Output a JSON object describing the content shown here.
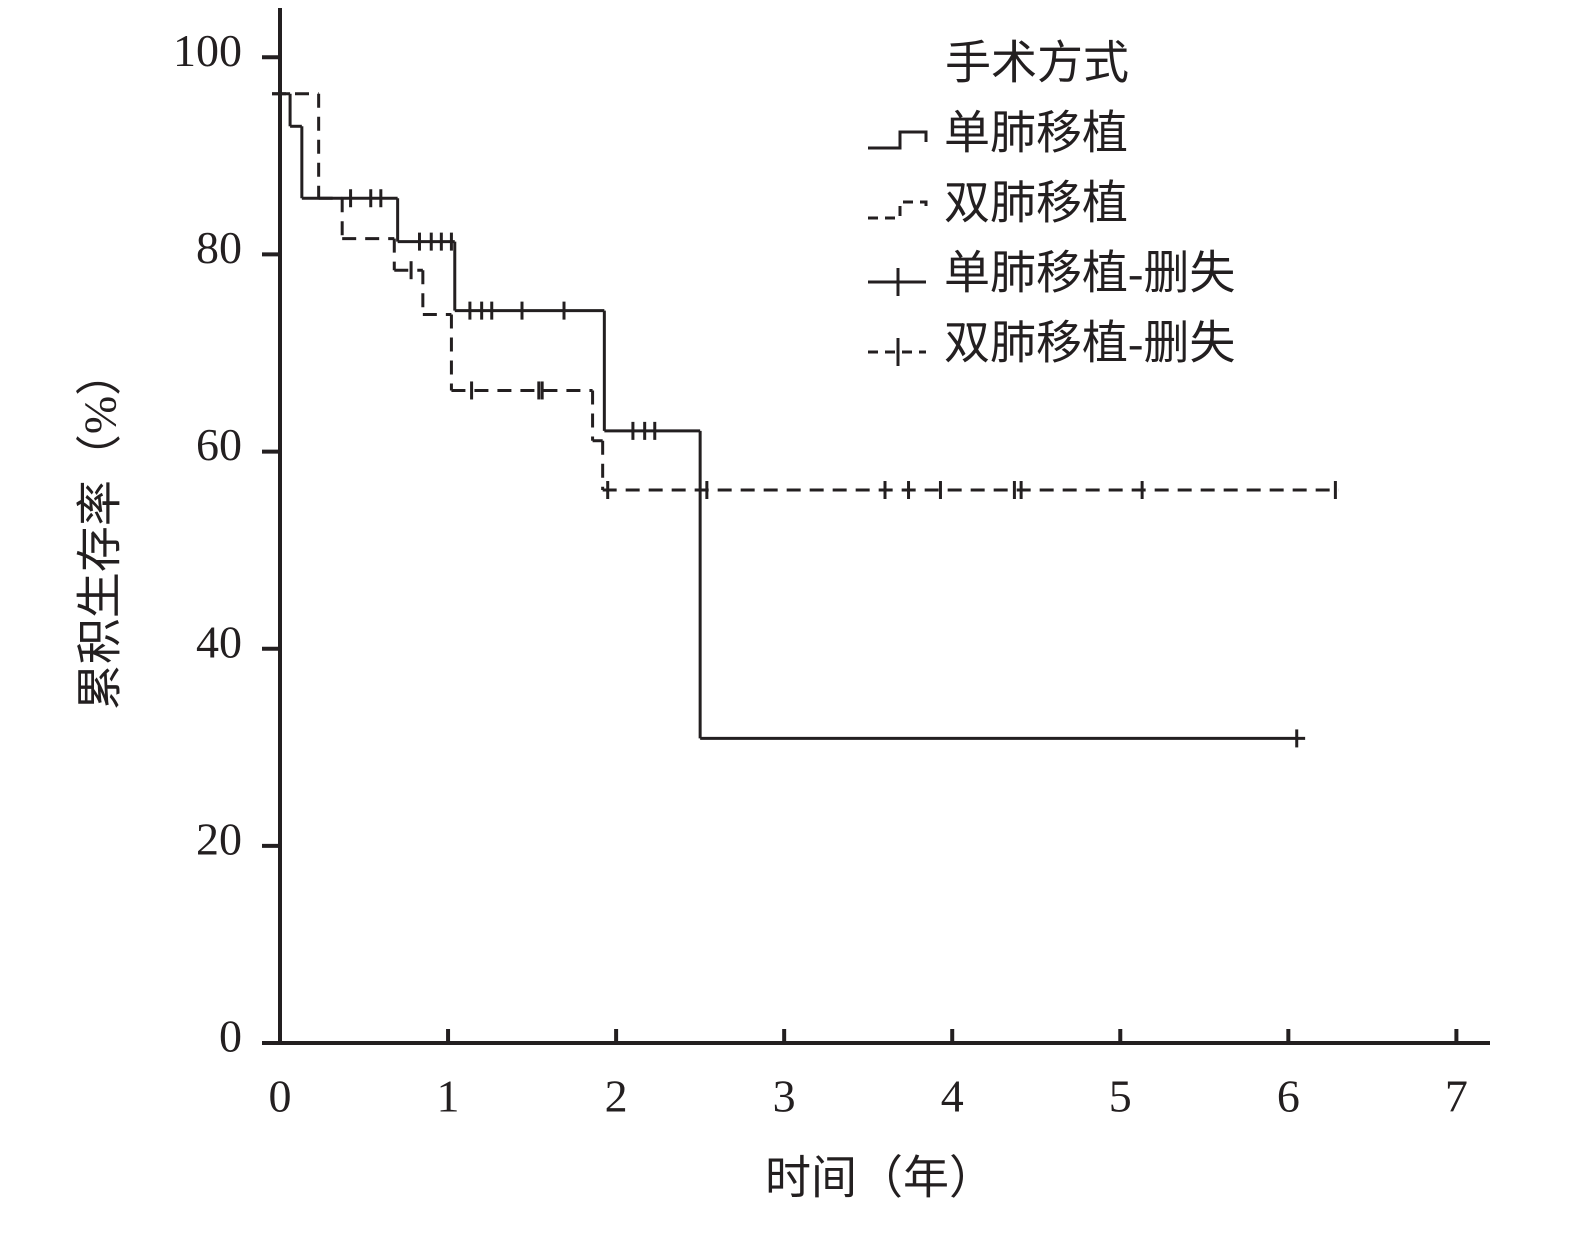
{
  "chart_data": {
    "type": "step",
    "x_label": "时间（年）",
    "y_label": "累积生存率（%）",
    "legend_title": "手术方式",
    "xlim": [
      0,
      7.2
    ],
    "ylim": [
      0,
      105
    ],
    "xticks": [
      0,
      1,
      2,
      3,
      4,
      5,
      6,
      7
    ],
    "yticks": [
      0,
      20,
      40,
      60,
      80,
      100
    ],
    "legend": "upper right",
    "color": "#231f20",
    "series": [
      {
        "name": "单肺移植",
        "dashed": false,
        "x": [
          0,
          0.06,
          0.13,
          0.7,
          1.04,
          1.93,
          2.5,
          6.1
        ],
        "values": [
          96.3,
          93,
          85.7,
          81.3,
          74.3,
          62.1,
          30.9,
          30.9
        ]
      },
      {
        "name": "双肺移植",
        "dashed": true,
        "x": [
          0,
          0.23,
          0.37,
          0.68,
          0.85,
          1.02,
          1.86,
          1.92,
          6.3
        ],
        "values": [
          96.3,
          85.7,
          81.6,
          78.4,
          73.9,
          66.2,
          61.1,
          56.1,
          56.1
        ]
      }
    ],
    "censored": [
      {
        "name": "单肺移植-删失",
        "dashed": false,
        "x": [
          0.42,
          0.54,
          0.6,
          0.83,
          0.9,
          0.96,
          1.02,
          1.13,
          1.2,
          1.26,
          1.44,
          1.69,
          2.1,
          2.17,
          2.23,
          6.05
        ],
        "values": [
          85.7,
          85.7,
          85.7,
          81.3,
          81.3,
          81.3,
          81.3,
          74.3,
          74.3,
          74.3,
          74.3,
          74.3,
          62.1,
          62.1,
          62.1,
          30.9
        ]
      },
      {
        "name": "双肺移植-删失",
        "dashed": true,
        "x": [
          0.78,
          1.14,
          1.54,
          1.56,
          1.95,
          2.54,
          3.6,
          3.74,
          3.93,
          4.37,
          4.41,
          5.13,
          6.28
        ],
        "values": [
          78.4,
          66.2,
          66.2,
          66.2,
          56.1,
          56.1,
          56.1,
          56.1,
          56.1,
          56.1,
          56.1,
          56.1,
          56.1
        ]
      }
    ]
  }
}
